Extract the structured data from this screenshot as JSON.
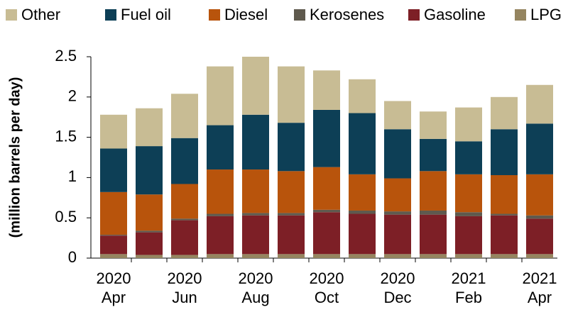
{
  "chart_data": {
    "type": "stacked_bar",
    "ylabel": "(million barrels per day)",
    "categories": [
      "2020\nApr",
      null,
      "2020\nJun",
      null,
      "2020\nAug",
      null,
      "2020\nOct",
      null,
      "2020\nDec",
      null,
      "2021\nFeb",
      null,
      "2021\nApr"
    ],
    "series": [
      {
        "name": "LPG",
        "color": "#958560",
        "values": [
          0.05,
          0.04,
          0.04,
          0.05,
          0.05,
          0.05,
          0.05,
          0.05,
          0.05,
          0.05,
          0.05,
          0.05,
          0.05
        ]
      },
      {
        "name": "Gasoline",
        "color": "#7d1f26",
        "values": [
          0.23,
          0.28,
          0.43,
          0.47,
          0.48,
          0.48,
          0.52,
          0.5,
          0.49,
          0.49,
          0.47,
          0.48,
          0.44
        ]
      },
      {
        "name": "Kerosenes",
        "color": "#5f5a4e",
        "values": [
          0.01,
          0.02,
          0.02,
          0.03,
          0.03,
          0.03,
          0.03,
          0.04,
          0.04,
          0.05,
          0.05,
          0.02,
          0.04
        ]
      },
      {
        "name": "Diesel",
        "color": "#b8540c",
        "values": [
          0.53,
          0.45,
          0.43,
          0.55,
          0.54,
          0.52,
          0.53,
          0.45,
          0.41,
          0.49,
          0.47,
          0.48,
          0.51
        ]
      },
      {
        "name": "Fuel oil",
        "color": "#0d3f56",
        "values": [
          0.54,
          0.6,
          0.57,
          0.55,
          0.68,
          0.6,
          0.71,
          0.76,
          0.61,
          0.4,
          0.41,
          0.57,
          0.63
        ]
      },
      {
        "name": "Other",
        "color": "#c8bc94",
        "values": [
          0.42,
          0.47,
          0.55,
          0.73,
          0.72,
          0.7,
          0.49,
          0.42,
          0.35,
          0.34,
          0.42,
          0.4,
          0.48
        ]
      }
    ],
    "ylim": [
      0,
      2.5
    ],
    "yticks": [
      0,
      0.5,
      1,
      1.5,
      2,
      2.5
    ]
  }
}
